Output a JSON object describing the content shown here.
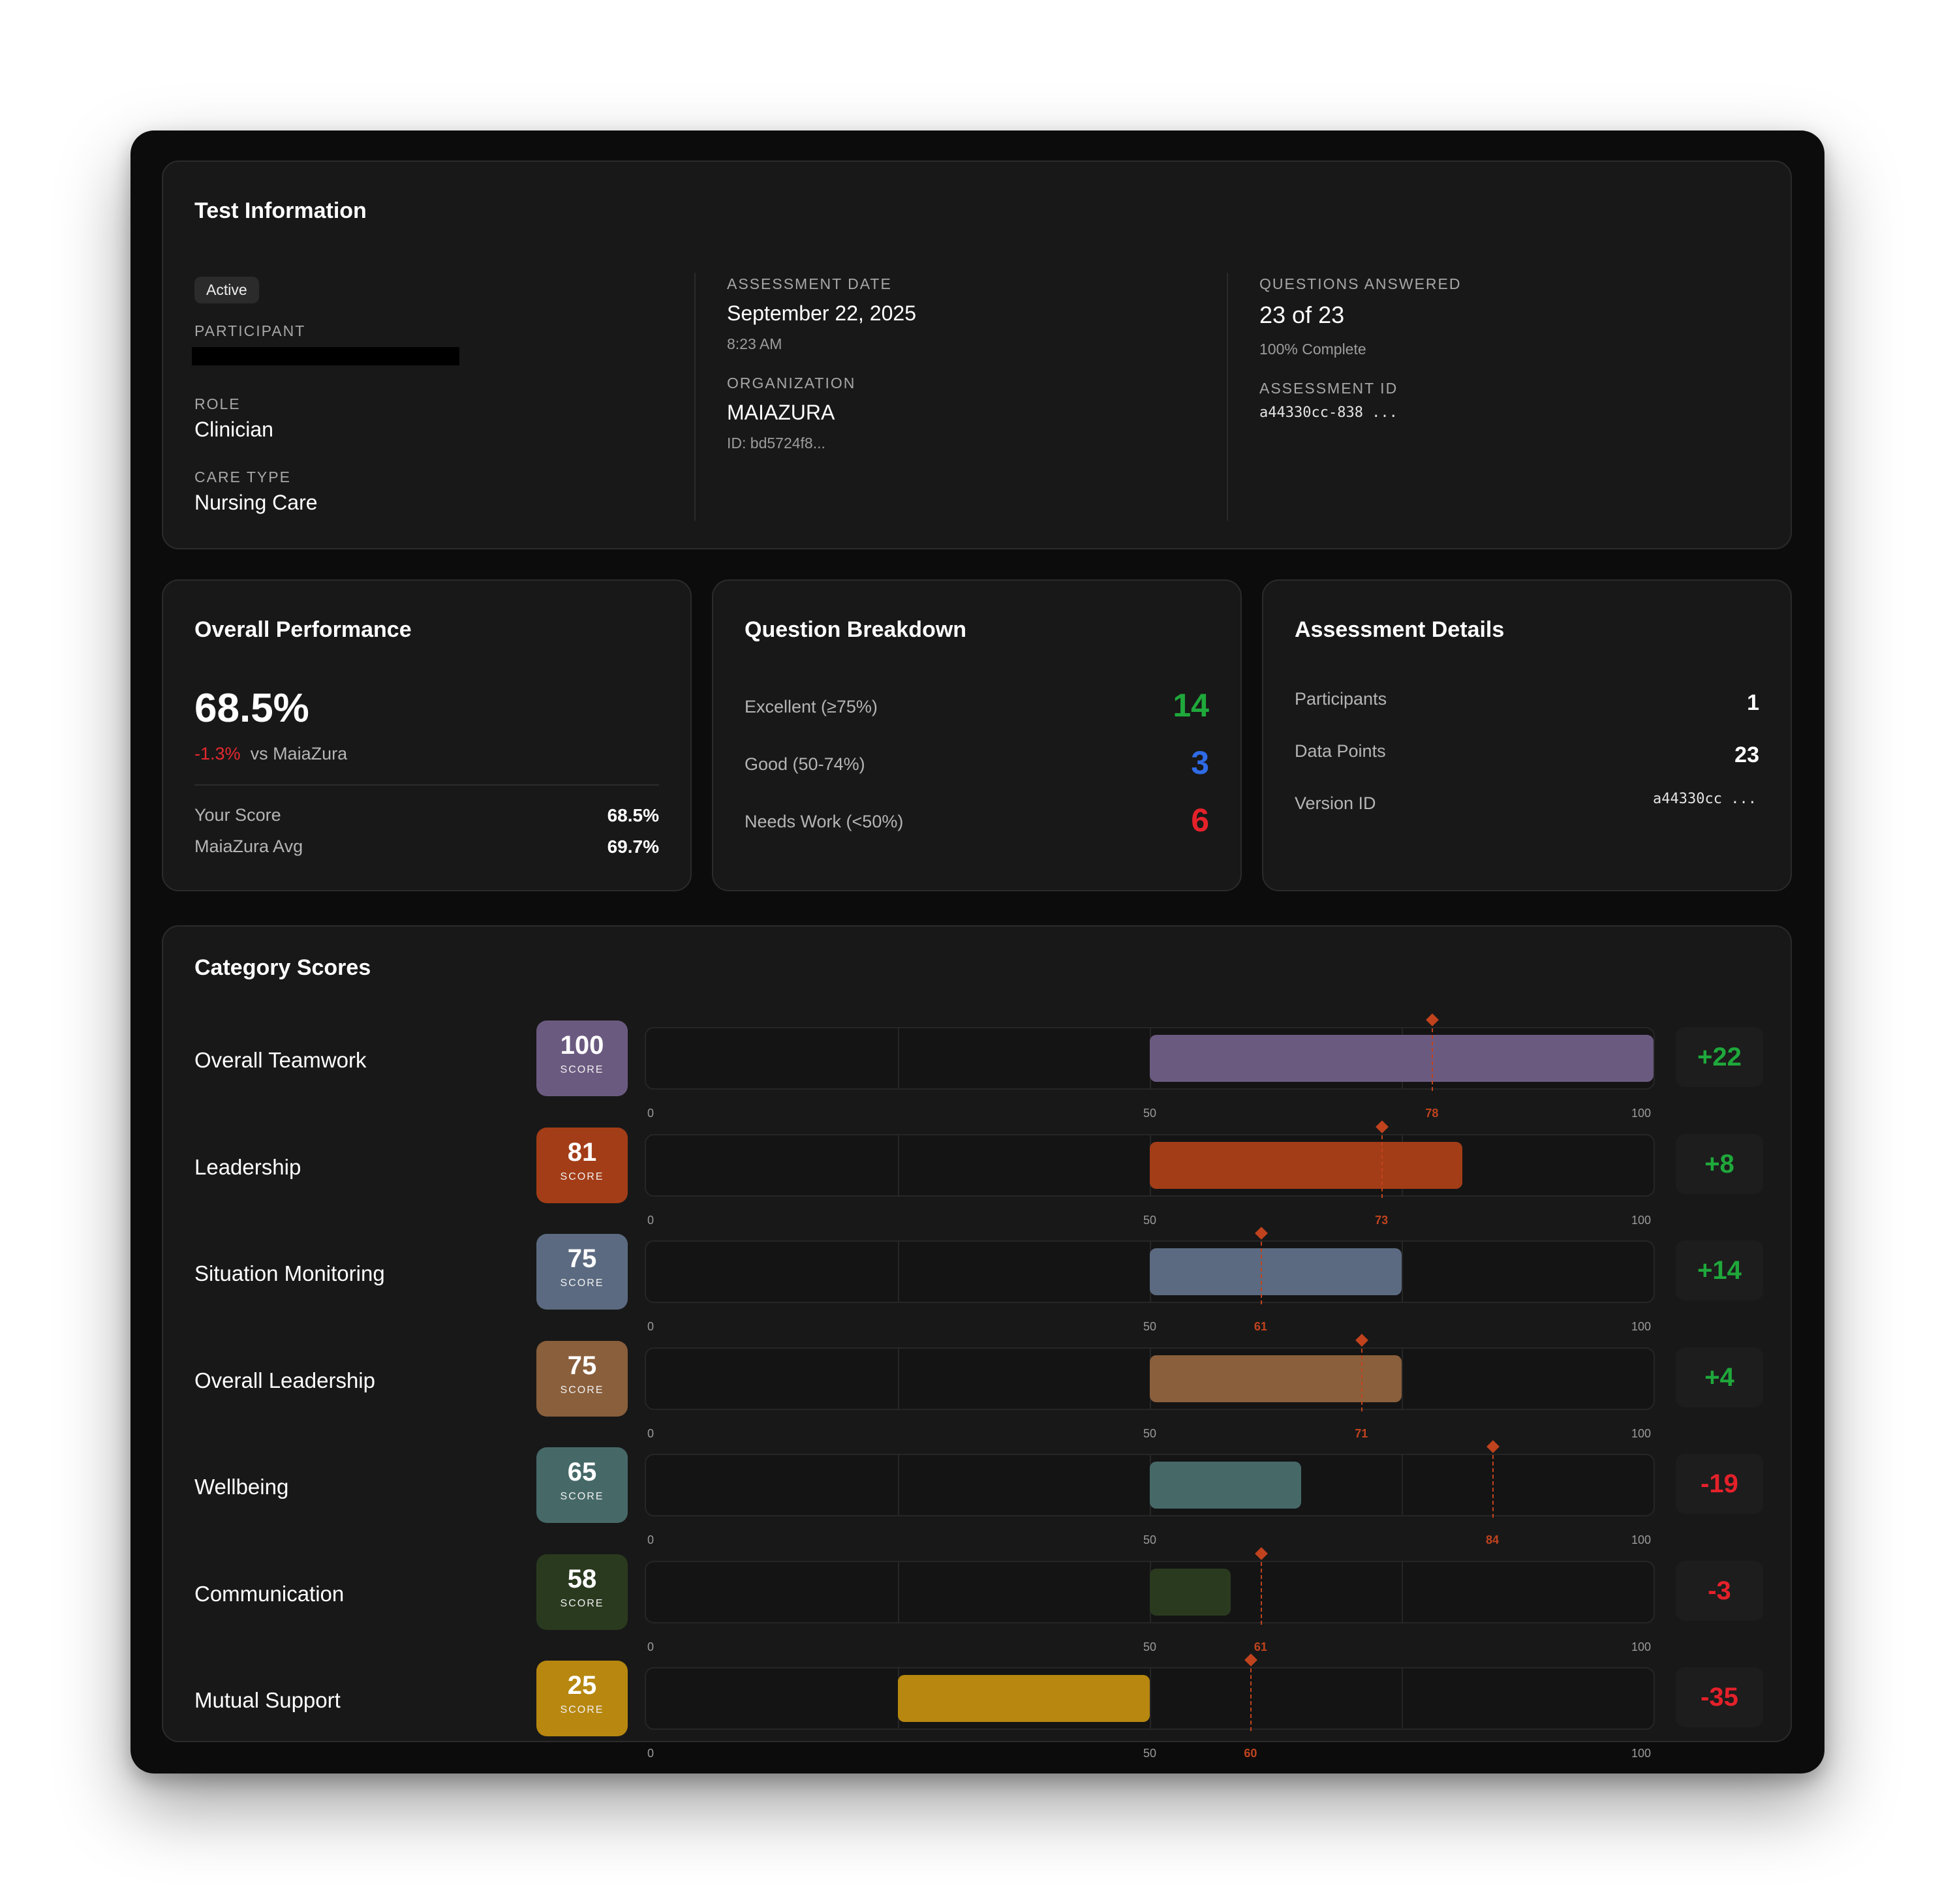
{
  "test_info": {
    "title": "Test Information",
    "status": "Active",
    "participant_label": "PARTICIPANT",
    "role_label": "ROLE",
    "role": "Clinician",
    "care_type_label": "CARE TYPE",
    "care_type": "Nursing Care",
    "date_label": "ASSESSMENT DATE",
    "date": "September 22, 2025",
    "time": "8:23 AM",
    "org_label": "ORGANIZATION",
    "org": "MAIAZURA",
    "org_id": "ID: bd5724f8...",
    "questions_label": "QUESTIONS ANSWERED",
    "questions": "23 of 23",
    "completion": "100% Complete",
    "assessment_id_label": "ASSESSMENT ID",
    "assessment_id": "a44330cc-838 ..."
  },
  "overall": {
    "title": "Overall Performance",
    "score": "68.5%",
    "delta": "-1.3%",
    "delta_suffix": "vs MaiaZura",
    "your_score_label": "Your Score",
    "your_score": "68.5%",
    "avg_label": "MaiaZura Avg",
    "avg": "69.7%"
  },
  "breakdown": {
    "title": "Question Breakdown",
    "rows": [
      {
        "label": "Excellent (≥75%)",
        "count": "14",
        "color": "#1fa83b"
      },
      {
        "label": "Good (50-74%)",
        "count": "3",
        "color": "#2f6be6"
      },
      {
        "label": "Needs Work (<50%)",
        "count": "6",
        "color": "#e5212a"
      }
    ]
  },
  "details": {
    "title": "Assessment Details",
    "participants_label": "Participants",
    "participants": "1",
    "data_points_label": "Data Points",
    "data_points": "23",
    "version_label": "Version ID",
    "version": "a44330cc ..."
  },
  "categories": {
    "title": "Category Scores",
    "score_label": "SCORE",
    "axis": {
      "min": "0",
      "mid": "50",
      "max": "100"
    },
    "items": [
      {
        "name": "Overall Teamwork",
        "score": 100,
        "avg": 78,
        "diff": "+22",
        "color": "#6b5a80"
      },
      {
        "name": "Leadership",
        "score": 81,
        "avg": 73,
        "diff": "+8",
        "color": "#a33d17"
      },
      {
        "name": "Situation Monitoring",
        "score": 75,
        "avg": 61,
        "diff": "+14",
        "color": "#5b6a80"
      },
      {
        "name": "Overall Leadership",
        "score": 75,
        "avg": 71,
        "diff": "+4",
        "color": "#8a5f3c"
      },
      {
        "name": "Wellbeing",
        "score": 65,
        "avg": 84,
        "diff": "-19",
        "color": "#466968"
      },
      {
        "name": "Communication",
        "score": 58,
        "avg": 61,
        "diff": "-3",
        "color": "#2a3a1f"
      },
      {
        "name": "Mutual Support",
        "score": 25,
        "avg": 60,
        "diff": "-35",
        "color": "#b7870f"
      }
    ]
  }
}
